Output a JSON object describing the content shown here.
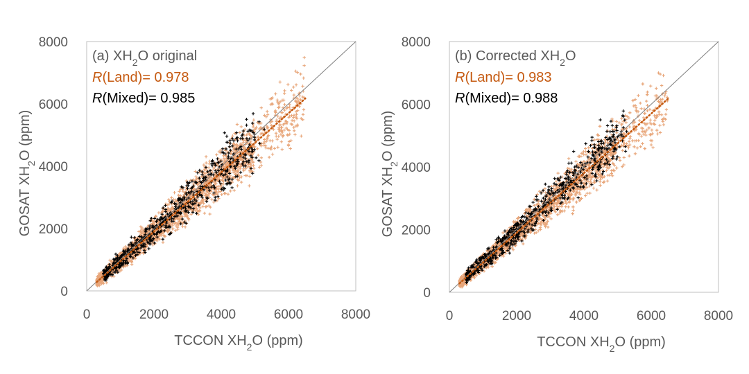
{
  "colors": {
    "land": "#C55A11",
    "land_points": "#E8A67A",
    "mixed": "#000000",
    "axis_text": "#595959",
    "frame": "#BFBFBF",
    "one_to_one": "#7F7F7F"
  },
  "chart_data": [
    {
      "type": "scatter",
      "panel_label": "(a) XH",
      "panel_label_sub": "2",
      "panel_label_end": "O original",
      "xlabel": "TCCON XH",
      "xlabel_sub": "2",
      "xlabel_end": "O (ppm)",
      "ylabel": "GOSAT XH",
      "ylabel_sub": "2",
      "ylabel_end": "O (ppm)",
      "xlim": [
        0,
        8000
      ],
      "ylim": [
        0,
        8000
      ],
      "xticks": [
        "0",
        "2000",
        "4000",
        "6000",
        "8000"
      ],
      "yticks": [
        "0",
        "2000",
        "4000",
        "6000",
        "8000"
      ],
      "one_to_one_line": true,
      "annotations": [
        {
          "var": "R",
          "text": "(Land)= 0.978",
          "color": "#C55A11"
        },
        {
          "var": "R",
          "text": "(Mixed)= 0.985",
          "color": "#000000"
        }
      ],
      "series": [
        {
          "group": "Land",
          "marker": "+",
          "color": "#E8A67A",
          "x_range": [
            300,
            6500
          ],
          "slope": 0.95,
          "intercept": 0
        },
        {
          "group": "Mixed",
          "marker": "+",
          "color": "#000000",
          "x_range": [
            500,
            5300
          ],
          "slope": 0.97,
          "intercept": 0
        }
      ],
      "trend_lines": [
        {
          "group": "Land",
          "x": [
            300,
            6500
          ],
          "y": [
            285,
            6175
          ],
          "color": "#C55A11",
          "style": "dotted"
        }
      ]
    },
    {
      "type": "scatter",
      "panel_label": "(b) Corrected XH",
      "panel_label_sub": "2",
      "panel_label_end": "O",
      "xlabel": "TCCON XH",
      "xlabel_sub": "2",
      "xlabel_end": "O (ppm)",
      "ylabel": "GOSAT XH",
      "ylabel_sub": "2",
      "ylabel_end": "O (ppm)",
      "xlim": [
        0,
        8000
      ],
      "ylim": [
        0,
        8000
      ],
      "xticks": [
        "0",
        "2000",
        "4000",
        "6000",
        "8000"
      ],
      "yticks": [
        "0",
        "2000",
        "4000",
        "6000",
        "8000"
      ],
      "one_to_one_line": true,
      "annotations": [
        {
          "var": "R",
          "text": "(Land)= 0.983",
          "color": "#C55A11"
        },
        {
          "var": "R",
          "text": "(Mixed)= 0.988",
          "color": "#000000"
        }
      ],
      "series": [
        {
          "group": "Land",
          "marker": "+",
          "color": "#E8A67A",
          "x_range": [
            300,
            6500
          ],
          "slope": 0.95,
          "intercept": 0
        },
        {
          "group": "Mixed",
          "marker": "+",
          "color": "#000000",
          "x_range": [
            500,
            5300
          ],
          "slope": 0.985,
          "intercept": 0
        }
      ],
      "trend_lines": [
        {
          "group": "Land",
          "x": [
            300,
            6500
          ],
          "y": [
            285,
            6175
          ],
          "color": "#C55A11",
          "style": "dotted"
        }
      ]
    }
  ]
}
